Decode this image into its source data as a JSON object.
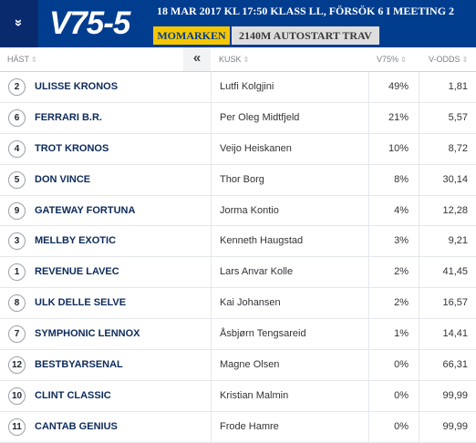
{
  "header": {
    "toggle_icon": "»",
    "game_title": "V75-5",
    "race_meta": "18 MAR 2017 KL 17:50 KLASS LL, FÖRSÖK 6 I MEETING 2",
    "track": "MOMARKEN",
    "race_info": "2140M AUTOSTART TRAV"
  },
  "columns": {
    "horse": "HÄST",
    "collapse": "«",
    "driver": "KUSK",
    "pct": "V75%",
    "odds": "V-ODDS",
    "sort_icon": "⇕"
  },
  "rows": [
    {
      "num": "2",
      "horse": "ULISSE KRONOS",
      "driver": "Lutfi Kolgjini",
      "pct": "49%",
      "odds": "1,81"
    },
    {
      "num": "6",
      "horse": "FERRARI B.R.",
      "driver": "Per Oleg Midtfjeld",
      "pct": "21%",
      "odds": "5,57"
    },
    {
      "num": "4",
      "horse": "TROT KRONOS",
      "driver": "Veijo Heiskanen",
      "pct": "10%",
      "odds": "8,72"
    },
    {
      "num": "5",
      "horse": "DON VINCE",
      "driver": "Thor Borg",
      "pct": "8%",
      "odds": "30,14"
    },
    {
      "num": "9",
      "horse": "GATEWAY FORTUNA",
      "driver": "Jorma Kontio",
      "pct": "4%",
      "odds": "12,28"
    },
    {
      "num": "3",
      "horse": "MELLBY EXOTIC",
      "driver": "Kenneth Haugstad",
      "pct": "3%",
      "odds": "9,21"
    },
    {
      "num": "1",
      "horse": "REVENUE LAVEC",
      "driver": "Lars Anvar Kolle",
      "pct": "2%",
      "odds": "41,45"
    },
    {
      "num": "8",
      "horse": "ULK DELLE SELVE",
      "driver": "Kai Johansen",
      "pct": "2%",
      "odds": "16,57"
    },
    {
      "num": "7",
      "horse": "SYMPHONIC LENNOX",
      "driver": "Åsbjørn Tengsareid",
      "pct": "1%",
      "odds": "14,41"
    },
    {
      "num": "12",
      "horse": "BESTBYARSENAL",
      "driver": "Magne Olsen",
      "pct": "0%",
      "odds": "66,31"
    },
    {
      "num": "10",
      "horse": "CLINT CLASSIC",
      "driver": "Kristian Malmin",
      "pct": "0%",
      "odds": "99,99"
    },
    {
      "num": "11",
      "horse": "CANTAB GENIUS",
      "driver": "Frode Hamre",
      "pct": "0%",
      "odds": "99,99"
    }
  ]
}
